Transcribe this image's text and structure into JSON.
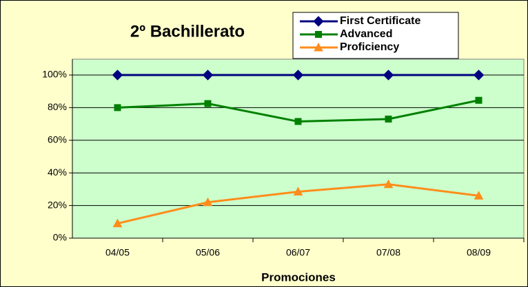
{
  "chart_data": {
    "type": "line",
    "title": "2º Bachillerato",
    "x_label": "Promociones",
    "categories": [
      "04/05",
      "05/06",
      "06/07",
      "07/08",
      "08/09"
    ],
    "series": [
      {
        "name": "First Certificate",
        "color": "#000080",
        "marker": "diamond",
        "values": [
          100,
          100,
          100,
          100,
          100
        ]
      },
      {
        "name": "Advanced",
        "color": "#008000",
        "marker": "square",
        "values": [
          80,
          82.5,
          71.5,
          73,
          84.5
        ]
      },
      {
        "name": "Proficiency",
        "color": "#ff8c1a",
        "marker": "triangle",
        "values": [
          9,
          22,
          28.5,
          33,
          26
        ]
      }
    ],
    "ylim": [
      0,
      100
    ],
    "yticks": [
      {
        "value": 0,
        "label": "0%"
      },
      {
        "value": 20,
        "label": "20%"
      },
      {
        "value": 40,
        "label": "40%"
      },
      {
        "value": 60,
        "label": "60%"
      },
      {
        "value": 80,
        "label": "80%"
      },
      {
        "value": 100,
        "label": "100%"
      }
    ],
    "grid": true
  }
}
